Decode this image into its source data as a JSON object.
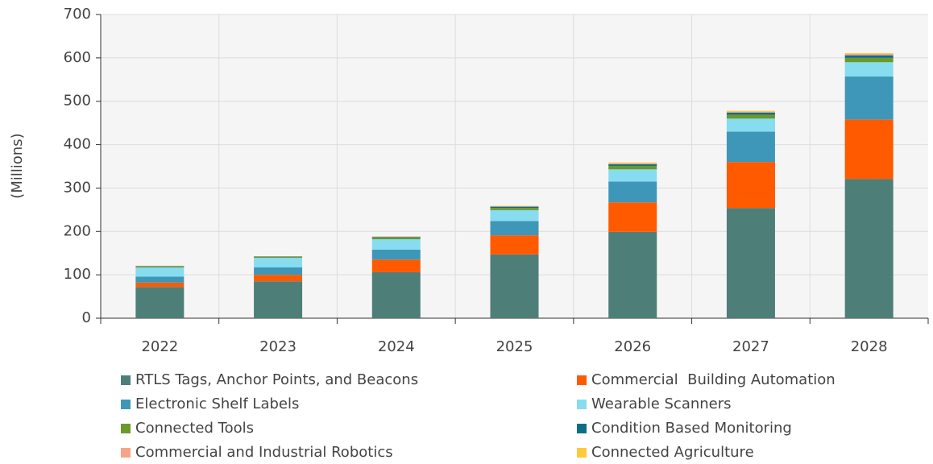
{
  "chart_data": {
    "type": "stacked_bar",
    "y_label": "(Millions)",
    "categories": [
      "2022",
      "2023",
      "2024",
      "2025",
      "2026",
      "2027",
      "2028"
    ],
    "series": [
      {
        "name": "RTLS Tags, Anchor Points, and Beacons",
        "color": "#4e7e78",
        "values": [
          72,
          85,
          106,
          147,
          199,
          254,
          321
        ]
      },
      {
        "name": "Commercial  Building Automation",
        "color": "#ff5a00",
        "values": [
          10,
          15,
          29,
          44,
          68,
          106,
          137
        ]
      },
      {
        "name": "Electronic Shelf Labels",
        "color": "#3e97b8",
        "values": [
          14,
          17,
          23,
          33,
          48,
          70,
          99
        ]
      },
      {
        "name": "Wearable Scanners",
        "color": "#87dcef",
        "values": [
          21,
          22,
          24,
          25,
          28,
          30,
          33
        ]
      },
      {
        "name": "Connected Tools",
        "color": "#6a9a2a",
        "values": [
          2,
          2,
          3,
          5,
          8,
          9,
          10
        ]
      },
      {
        "name": "Condition Based Monitoring",
        "color": "#0e6e8a",
        "values": [
          1,
          1,
          2,
          3,
          4,
          5,
          6
        ]
      },
      {
        "name": "Commercial and Industrial Robotics",
        "color": "#f7a48a",
        "values": [
          0.5,
          0.5,
          1,
          1,
          2,
          2,
          3
        ]
      },
      {
        "name": "Connected Agriculture",
        "color": "#ffc93c",
        "values": [
          0.5,
          0.5,
          1,
          1,
          2,
          2,
          2
        ]
      }
    ],
    "ylim": [
      0,
      700
    ],
    "yticks": [
      0,
      100,
      200,
      300,
      400,
      500,
      600,
      700
    ],
    "grid": true
  }
}
